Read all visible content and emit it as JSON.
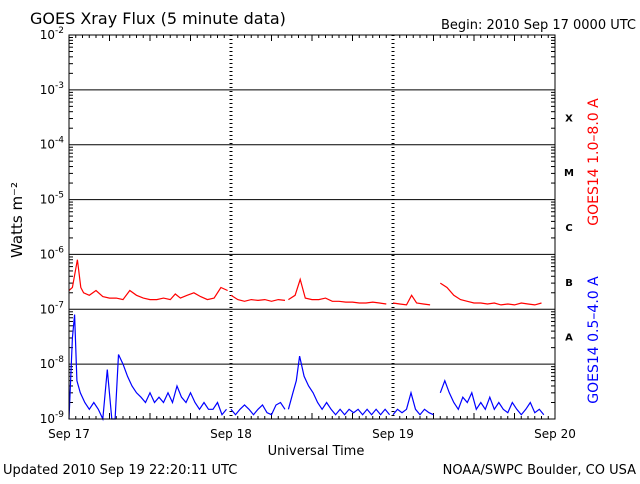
{
  "header": {
    "title": "GOES Xray Flux (5 minute data)",
    "begin": "Begin:  2010 Sep 17 0000 UTC"
  },
  "footer": {
    "updated": "Updated 2010 Sep 19 22:20:11 UTC",
    "credit": "NOAA/SWPC Boulder, CO USA"
  },
  "colors": {
    "long_channel": "#ff0000",
    "short_channel": "#0000ff",
    "axes": "#000000"
  },
  "chart_data": {
    "type": "line",
    "xlabel": "Universal Time",
    "ylabel": "Watts m⁻²",
    "yscale": "log",
    "ylim": [
      1e-09,
      0.01
    ],
    "xlim": [
      "2010-09-17 00:00",
      "2010-09-20 00:00"
    ],
    "x_ticks": [
      "Sep 17",
      "Sep 18",
      "Sep 19",
      "Sep 20"
    ],
    "y_ticks": [
      {
        "value": 1e-09,
        "base": "10",
        "exp": "-9"
      },
      {
        "value": 1e-08,
        "base": "10",
        "exp": "-8"
      },
      {
        "value": 1e-07,
        "base": "10",
        "exp": "-7"
      },
      {
        "value": 1e-06,
        "base": "10",
        "exp": "-6"
      },
      {
        "value": 1e-05,
        "base": "10",
        "exp": "-5"
      },
      {
        "value": 0.0001,
        "base": "10",
        "exp": "-4"
      },
      {
        "value": 0.001,
        "base": "10",
        "exp": "-3"
      },
      {
        "value": 0.01,
        "base": "10",
        "exp": "-2"
      }
    ],
    "flare_classes": [
      {
        "label": "A",
        "lower": 1e-08
      },
      {
        "label": "B",
        "lower": 1e-07
      },
      {
        "label": "C",
        "lower": 1e-06
      },
      {
        "label": "M",
        "lower": 1e-05
      },
      {
        "label": "X",
        "lower": 0.0001
      }
    ],
    "grid": "horizontal lines at each decade, dashed vertical day markers",
    "series": [
      {
        "name": "GOES14 1.0–8.0 A",
        "color": "#ff0000",
        "segments": [
          {
            "x": [
              "2010-09-17 00:00",
              "2010-09-17 00:30",
              "2010-09-17 01:15",
              "2010-09-17 01:45",
              "2010-09-17 02:10",
              "2010-09-17 03:00",
              "2010-09-17 04:00",
              "2010-09-17 05:00",
              "2010-09-17 06:00",
              "2010-09-17 07:00",
              "2010-09-17 08:00",
              "2010-09-17 09:00",
              "2010-09-17 10:00",
              "2010-09-17 11:00",
              "2010-09-17 12:00",
              "2010-09-17 13:00",
              "2010-09-17 14:00",
              "2010-09-17 15:00",
              "2010-09-17 15:45",
              "2010-09-17 16:30",
              "2010-09-17 17:30",
              "2010-09-17 18:30",
              "2010-09-17 19:30",
              "2010-09-17 20:30",
              "2010-09-17 21:30",
              "2010-09-17 22:30",
              "2010-09-17 23:30"
            ],
            "y": [
              2.2e-07,
              2.5e-07,
              8e-07,
              2.5e-07,
              2e-07,
              1.8e-07,
              2.2e-07,
              1.7e-07,
              1.6e-07,
              1.6e-07,
              1.5e-07,
              2.2e-07,
              1.8e-07,
              1.6e-07,
              1.5e-07,
              1.5e-07,
              1.6e-07,
              1.5e-07,
              1.9e-07,
              1.6e-07,
              1.8e-07,
              2e-07,
              1.7e-07,
              1.5e-07,
              1.6e-07,
              2.5e-07,
              2.2e-07
            ]
          },
          {
            "x": [
              "2010-09-18 00:00",
              "2010-09-18 01:00",
              "2010-09-18 02:00",
              "2010-09-18 03:00",
              "2010-09-18 04:00",
              "2010-09-18 05:00",
              "2010-09-18 06:00",
              "2010-09-18 07:00",
              "2010-09-18 08:00"
            ],
            "y": [
              1.8e-07,
              1.5e-07,
              1.4e-07,
              1.5e-07,
              1.45e-07,
              1.5e-07,
              1.4e-07,
              1.5e-07,
              1.45e-07
            ]
          },
          {
            "x": [
              "2010-09-18 08:30",
              "2010-09-18 09:30",
              "2010-09-18 10:15",
              "2010-09-18 11:00",
              "2010-09-18 12:00",
              "2010-09-18 13:00",
              "2010-09-18 14:00",
              "2010-09-18 15:00",
              "2010-09-18 16:00",
              "2010-09-18 17:00",
              "2010-09-18 18:00",
              "2010-09-18 19:00",
              "2010-09-18 20:00",
              "2010-09-18 21:00",
              "2010-09-18 22:00",
              "2010-09-18 23:00"
            ],
            "y": [
              1.5e-07,
              1.8e-07,
              3.5e-07,
              1.6e-07,
              1.5e-07,
              1.5e-07,
              1.6e-07,
              1.4e-07,
              1.4e-07,
              1.35e-07,
              1.35e-07,
              1.3e-07,
              1.3e-07,
              1.35e-07,
              1.3e-07,
              1.25e-07
            ]
          },
          {
            "x": [
              "2010-09-19 00:00",
              "2010-09-19 01:00",
              "2010-09-19 02:00",
              "2010-09-19 02:45",
              "2010-09-19 03:30",
              "2010-09-19 04:30",
              "2010-09-19 05:30"
            ],
            "y": [
              1.3e-07,
              1.25e-07,
              1.2e-07,
              1.8e-07,
              1.3e-07,
              1.25e-07,
              1.2e-07
            ]
          },
          {
            "x": [
              "2010-09-19 07:00",
              "2010-09-19 08:00",
              "2010-09-19 09:00",
              "2010-09-19 10:00",
              "2010-09-19 11:00",
              "2010-09-19 12:00",
              "2010-09-19 13:00",
              "2010-09-19 14:00",
              "2010-09-19 15:00",
              "2010-09-19 16:00",
              "2010-09-19 17:00",
              "2010-09-19 18:00",
              "2010-09-19 19:00",
              "2010-09-19 20:00",
              "2010-09-19 21:00",
              "2010-09-19 22:00"
            ],
            "y": [
              3e-07,
              2.5e-07,
              1.8e-07,
              1.5e-07,
              1.4e-07,
              1.3e-07,
              1.3e-07,
              1.25e-07,
              1.3e-07,
              1.2e-07,
              1.25e-07,
              1.2e-07,
              1.3e-07,
              1.25e-07,
              1.2e-07,
              1.3e-07
            ]
          }
        ]
      },
      {
        "name": "GOES14 0.5–4.0 A",
        "color": "#0000ff",
        "segments": [
          {
            "x": [
              "2010-09-17 00:00",
              "2010-09-17 00:30",
              "2010-09-17 00:50",
              "2010-09-17 01:10",
              "2010-09-17 01:40",
              "2010-09-17 02:20",
              "2010-09-17 03:00",
              "2010-09-17 03:40",
              "2010-09-17 04:20",
              "2010-09-17 05:00",
              "2010-09-17 05:40",
              "2010-09-17 06:20",
              "2010-09-17 06:50",
              "2010-09-17 07:20",
              "2010-09-17 08:00",
              "2010-09-17 08:40",
              "2010-09-17 09:20",
              "2010-09-17 10:00",
              "2010-09-17 10:40",
              "2010-09-17 11:20",
              "2010-09-17 12:00",
              "2010-09-17 12:40",
              "2010-09-17 13:20",
              "2010-09-17 14:00",
              "2010-09-17 14:40",
              "2010-09-17 15:20",
              "2010-09-17 16:00",
              "2010-09-17 16:40",
              "2010-09-17 17:20",
              "2010-09-17 18:00",
              "2010-09-17 18:40",
              "2010-09-17 19:20",
              "2010-09-17 20:00",
              "2010-09-17 20:40",
              "2010-09-17 21:20",
              "2010-09-17 22:00",
              "2010-09-17 22:40",
              "2010-09-17 23:20"
            ],
            "y": [
              1e-09,
              3e-08,
              8e-08,
              5e-09,
              3e-09,
              2e-09,
              1.5e-09,
              2e-09,
              1.5e-09,
              1e-09,
              8e-09,
              1e-09,
              1e-09,
              1.5e-08,
              1e-08,
              6e-09,
              4e-09,
              3e-09,
              2.5e-09,
              2e-09,
              3e-09,
              2e-09,
              2.5e-09,
              2e-09,
              3e-09,
              2e-09,
              4e-09,
              2.5e-09,
              2e-09,
              3e-09,
              2e-09,
              1.5e-09,
              2e-09,
              1.5e-09,
              1.5e-09,
              2e-09,
              1.2e-09,
              1.5e-09
            ]
          },
          {
            "x": [
              "2010-09-18 00:00",
              "2010-09-18 00:40",
              "2010-09-18 01:20",
              "2010-09-18 02:00",
              "2010-09-18 02:40",
              "2010-09-18 03:20",
              "2010-09-18 04:00",
              "2010-09-18 04:40",
              "2010-09-18 05:20",
              "2010-09-18 06:00",
              "2010-09-18 06:40",
              "2010-09-18 07:20",
              "2010-09-18 08:00"
            ],
            "y": [
              1.5e-09,
              1.2e-09,
              1.5e-09,
              1.8e-09,
              1.5e-09,
              1.2e-09,
              1.5e-09,
              1.8e-09,
              1.3e-09,
              1.2e-09,
              1.8e-09,
              2e-09,
              1.5e-09
            ]
          },
          {
            "x": [
              "2010-09-18 08:30",
              "2010-09-18 09:10",
              "2010-09-18 09:40",
              "2010-09-18 10:10",
              "2010-09-18 10:50",
              "2010-09-18 11:30",
              "2010-09-18 12:10",
              "2010-09-18 12:50",
              "2010-09-18 13:30",
              "2010-09-18 14:10",
              "2010-09-18 14:50",
              "2010-09-18 15:30",
              "2010-09-18 16:10",
              "2010-09-18 16:50",
              "2010-09-18 17:30",
              "2010-09-18 18:10",
              "2010-09-18 18:50",
              "2010-09-18 19:30",
              "2010-09-18 20:10",
              "2010-09-18 20:50",
              "2010-09-18 21:30",
              "2010-09-18 22:10",
              "2010-09-18 22:50",
              "2010-09-18 23:30"
            ],
            "y": [
              1.5e-09,
              3e-09,
              5e-09,
              1.4e-08,
              6e-09,
              4e-09,
              3e-09,
              2e-09,
              1.5e-09,
              2e-09,
              1.5e-09,
              1.2e-09,
              1.5e-09,
              1.2e-09,
              1.5e-09,
              1.3e-09,
              1.5e-09,
              1.2e-09,
              1.5e-09,
              1.2e-09,
              1.5e-09,
              1.2e-09,
              1.5e-09,
              1.2e-09
            ]
          },
          {
            "x": [
              "2010-09-19 00:00",
              "2010-09-19 00:40",
              "2010-09-19 01:20",
              "2010-09-19 02:00",
              "2010-09-19 02:40",
              "2010-09-19 03:20",
              "2010-09-19 04:00",
              "2010-09-19 04:40",
              "2010-09-19 05:20",
              "2010-09-19 06:00"
            ],
            "y": [
              1.2e-09,
              1.5e-09,
              1.3e-09,
              1.5e-09,
              3e-09,
              1.5e-09,
              1.2e-09,
              1.5e-09,
              1.3e-09,
              1.2e-09
            ]
          },
          {
            "x": [
              "2010-09-19 07:00",
              "2010-09-19 07:40",
              "2010-09-19 08:20",
              "2010-09-19 09:00",
              "2010-09-19 09:40",
              "2010-09-19 10:20",
              "2010-09-19 11:00",
              "2010-09-19 11:40",
              "2010-09-19 12:20",
              "2010-09-19 13:00",
              "2010-09-19 13:40",
              "2010-09-19 14:20",
              "2010-09-19 15:00",
              "2010-09-19 15:40",
              "2010-09-19 16:20",
              "2010-09-19 17:00",
              "2010-09-19 17:40",
              "2010-09-19 18:20",
              "2010-09-19 19:00",
              "2010-09-19 19:40",
              "2010-09-19 20:20",
              "2010-09-19 21:00",
              "2010-09-19 21:40",
              "2010-09-19 22:20"
            ],
            "y": [
              3e-09,
              5e-09,
              3e-09,
              2e-09,
              1.5e-09,
              2.5e-09,
              2e-09,
              3e-09,
              1.5e-09,
              2e-09,
              1.5e-09,
              2.5e-09,
              1.5e-09,
              2e-09,
              1.5e-09,
              1.3e-09,
              2e-09,
              1.5e-09,
              1.2e-09,
              1.5e-09,
              2e-09,
              1.3e-09,
              1.5e-09,
              1.2e-09
            ]
          }
        ]
      }
    ]
  }
}
